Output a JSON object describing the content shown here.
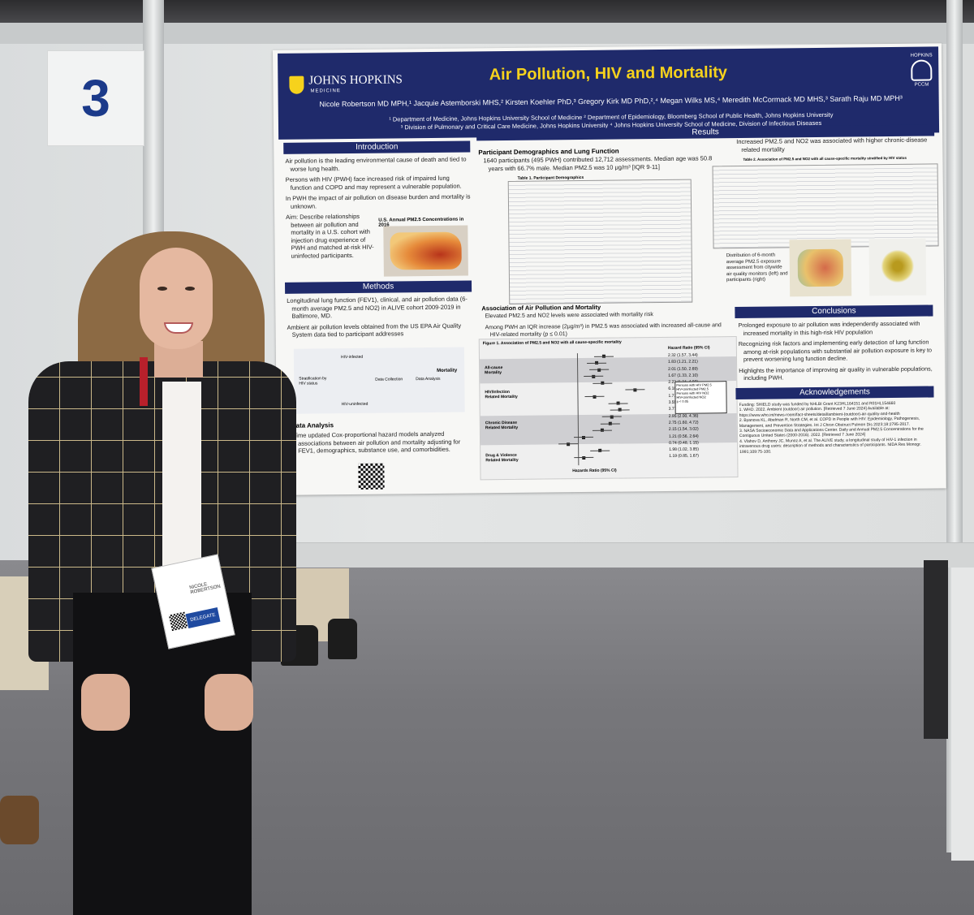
{
  "board_number": "3",
  "poster": {
    "title": "Air Pollution, HIV and Mortality",
    "institution": "JOHNS HOPKINS",
    "institution_sub": "MEDICINE",
    "pccm_label": "HOPKINS",
    "pccm_sub": "PCCM",
    "authors": "Nicole Robertson MD MPH,¹ Jacquie Astemborski MHS,² Kirsten Koehler PhD,³ Gregory Kirk MD PhD,²,⁴ Megan Wilks MS,⁴ Meredith McCormack MD MHS,³ Sarath Raju MD MPH³",
    "affiliations": [
      "¹ Department of Medicine, Johns Hopkins University School of Medicine ² Department of Epidemiology, Bloomberg School of Public Health, Johns Hopkins University",
      "³ Division of Pulmonary and Critical Care Medicine, Johns Hopkins University ⁴ Johns Hopkins University School of Medicine, Division of Infectious Diseases"
    ],
    "sections": {
      "introduction": "Introduction",
      "methods": "Methods",
      "results": "Results",
      "conclusions": "Conclusions",
      "acknowledgements": "Acknowledgements",
      "data_analysis": "Data Analysis"
    },
    "intro_bullets": [
      "Air pollution is the leading environmental cause of death and tied to worse lung health.",
      "Persons with HIV (PWH) face increased risk of impaired lung function and COPD and may represent a vulnerable population.",
      "In PWH the impact of air pollution on disease burden and mortality is unknown.",
      "Aim: Describe relationships between air pollution and mortality in a U.S. cohort with injection drug experience of PWH and matched at-risk HIV-uninfected participants."
    ],
    "map_caption": "U.S. Annual PM2.5 Concentrations in 2016",
    "methods_bullets": [
      "Longitudinal lung function (FEV1), clinical, and air pollution data (6-month average PM2.5 and NO2) in ALIVE cohort 2009-2019 in Baltimore, MD.",
      "Ambient air pollution levels obtained from the US EPA Air Quality System data tied to participant addresses"
    ],
    "data_analysis_bullet": "Time updated Cox-proportional hazard models analyzed associations between air pollution and mortality adjusting for FEV1, demographics, substance use, and comorbidities.",
    "results_sub1": "Participant Demographics and Lung Function",
    "results_text1": "1640 participants (495 PWH) contributed 12,712 assessments. Median age was 50.8 years with 66.7% male. Median PM2.5 was 10 μg/m³ [IQR 9-11]",
    "table1_title": "Table 1. Participant Demographics",
    "results_sub2": "Association of Air Pollution and Mortality",
    "results_bullets2": [
      "Elevated PM2.5 and NO2 levels were associated with mortality risk",
      "Among PWH an IQR increase (2μg/m³) in PM2.5 was associated with increased all-cause and HIV-related mortality (p ≤ 0.01)"
    ],
    "figure1_title": "Figure 1. Association of PM2.5 and NO2 with all cause-specific mortality",
    "figure1_axis": "Hazards Ratio (95% CI)",
    "figure1_col": "Hazard Ratio (95% CI)",
    "figure1_groups": [
      "All-cause Mortality",
      "HIV/Infection Related Mortality",
      "Chronic Disease Related Mortality",
      "Drug & Violence Related Mortality"
    ],
    "figure1_values": [
      "2.32 (1.57, 3.44)",
      "1.83 (1.21, 2.21)",
      "2.01 (1.50, 2.69)",
      "1.67 (1.33, 2.10)",
      "2.23 (1.24, 4.00)",
      "6.18 (1.50, 25.40)",
      "1.71 (1.11, 2.63)",
      "3.55 (1.37, 9.20)",
      "3.77 (1.81, 7.86)",
      "2.95 (2.00, 4.36)",
      "2.75 (1.60, 4.72)",
      "2.15 (1.54, 3.02)",
      "1.21 (0.56, 2.64)",
      "0.74 (0.48, 1.15)",
      "1.98 (1.02, 3.85)",
      "1.19 (0.85, 1.67)"
    ],
    "figure1_legend": [
      "Persons with HIV PM2.5",
      "HIV-Uninfected PM2.5",
      "Persons with HIV NO2",
      "HIV-Uninfected NO2",
      "p < 0.05"
    ],
    "results_right_bullet": "Increased PM2.5 and NO2 was associated with higher chronic-disease related mortality",
    "table2_title": "Table 2. Association of PM2.5 and NO2 with all cause-specific mortality stratified by HIV status",
    "map2_caption": "Distribution of 6-month average PM2.5 exposure assessment from citywide air quality monitors (left) and participants (right)",
    "conclusion_bullets": [
      "Prolonged exposure to air pollution was independently associated with increased mortality in this high-risk HIV population",
      "Recognizing risk factors and implementing early detection of lung function among at-risk populations with substantial air pollution exposure is key to prevent worsening lung function decline.",
      "Highlights the importance of improving air quality in vulnerable populations, including PWH."
    ],
    "ack_text": "Funding: SHIELD study was funded by NHLBI Grant K23HL164151 and R01HL154660",
    "references": [
      "1. WHO. 2022. Ambient (outdoor) air pollution. [Retrieved 7 June 2024] Available at: https://www.who.int/news-room/fact-sheets/detail/ambient-(outdoor)-air-quality-and-health",
      "2. Byanova KL, Abelman R, North CM, et al. COPD in People with HIV: Epidemiology, Pathogenesis, Management, and Prevention Strategies. Int J Chron Obstruct Pulmon Dis 2023;18:2795-2817.",
      "3. NASA Socioeconomic Data and Applications Center. Daily and Annual PM2.5 Concentrations for the Contiguous United States (2000-2016). 2022. [Retrieved 7 June 2024]",
      "4. Vlahov D, Anthony JC, Munoz A, et al. The ALIVE study, a longitudinal study of HIV-1 infection in intravenous drug users: description of methods and characteristics of participants. NIDA Res Monogr. 1991;109:75-100."
    ],
    "diagram_labels": [
      "HIV-infected",
      "HIV-uninfected",
      "Stratification by HIV status",
      "Data Collection",
      "Data Analysis",
      "Mortality"
    ]
  },
  "badge": {
    "name": "NICOLE ROBERTSON",
    "role": "DELEGATE"
  }
}
